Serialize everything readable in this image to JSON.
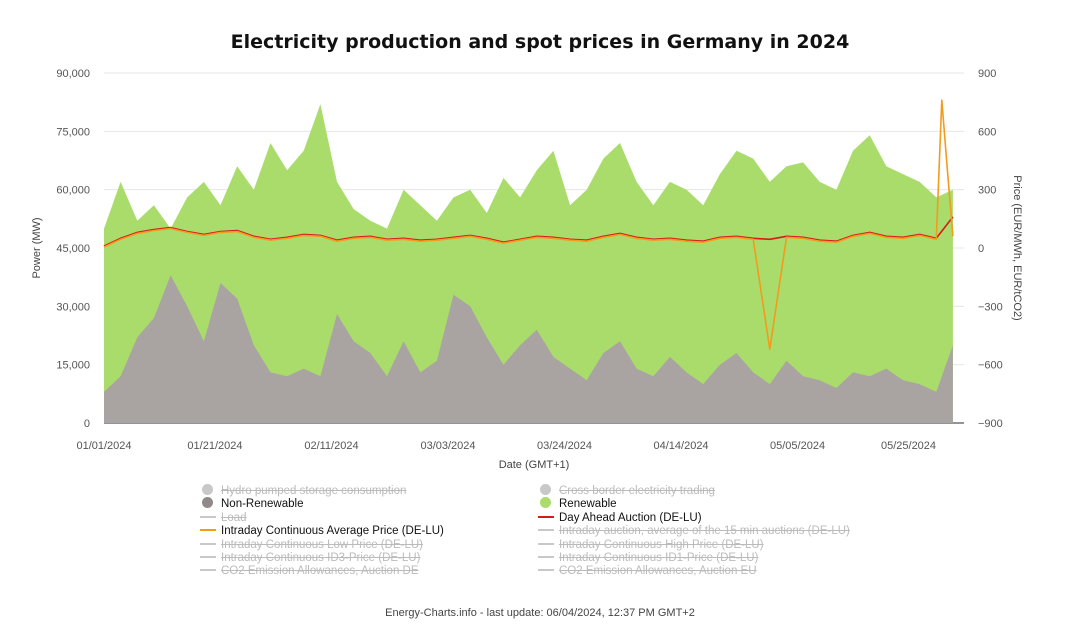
{
  "chart_data": {
    "type": "area",
    "title": "Electricity production and spot prices in Germany in 2024",
    "xlabel": "Date (GMT+1)",
    "ylabel": "Power (MW)",
    "y2label": "Price (EUR/MWh, EUR/tCO2)",
    "x_tick_labels": [
      "01/01/2024",
      "01/21/2024",
      "02/11/2024",
      "03/03/2024",
      "03/24/2024",
      "04/14/2024",
      "05/05/2024",
      "05/25/2024"
    ],
    "x_tick_days": [
      0,
      20,
      41,
      62,
      83,
      104,
      125,
      145
    ],
    "xlim_days": [
      0,
      155
    ],
    "ylim": [
      0,
      90000
    ],
    "y_ticks": [
      0,
      15000,
      30000,
      45000,
      60000,
      75000,
      90000
    ],
    "y_tick_labels": [
      "0",
      "15,000",
      "30,000",
      "45,000",
      "60,000",
      "75,000",
      "90,000"
    ],
    "y2lim": [
      -900,
      900
    ],
    "y2_ticks": [
      -900,
      -600,
      -300,
      0,
      300,
      600,
      900
    ],
    "y2_tick_labels": [
      "−900",
      "−600",
      "−300",
      "0",
      "300",
      "600",
      "900"
    ],
    "grid": true,
    "legend_position": "bottom",
    "series": [
      {
        "name": "Hydro pumped storage consumption",
        "kind": "area",
        "color": "#c8c8c8",
        "visible": false
      },
      {
        "name": "Cross border electricity trading",
        "kind": "area",
        "color": "#c8c8c8",
        "visible": false
      },
      {
        "name": "Non-Renewable",
        "kind": "area",
        "color": "#a9a4a2",
        "visible": true,
        "x_days": [
          0,
          3,
          6,
          9,
          12,
          15,
          18,
          21,
          24,
          27,
          30,
          33,
          36,
          39,
          42,
          45,
          48,
          51,
          54,
          57,
          60,
          63,
          66,
          69,
          72,
          75,
          78,
          81,
          84,
          87,
          90,
          93,
          96,
          99,
          102,
          105,
          108,
          111,
          114,
          117,
          120,
          123,
          126,
          129,
          132,
          135,
          138,
          141,
          144,
          147,
          150,
          153
        ],
        "values": [
          8000,
          12000,
          22000,
          27000,
          38000,
          30000,
          21000,
          36000,
          32000,
          20000,
          13000,
          12000,
          14000,
          12000,
          28000,
          21000,
          18000,
          12000,
          21000,
          13000,
          16000,
          33000,
          30000,
          22000,
          15000,
          20000,
          24000,
          17000,
          14000,
          11000,
          18000,
          21000,
          14000,
          12000,
          17000,
          13000,
          10000,
          15000,
          18000,
          13000,
          10000,
          16000,
          12000,
          11000,
          9000,
          13000,
          12000,
          14000,
          11000,
          10000,
          8000,
          20000
        ]
      },
      {
        "name": "Renewable",
        "kind": "area",
        "color": "#a9dc6b",
        "visible": true,
        "x_days": [
          0,
          3,
          6,
          9,
          12,
          15,
          18,
          21,
          24,
          27,
          30,
          33,
          36,
          39,
          42,
          45,
          48,
          51,
          54,
          57,
          60,
          63,
          66,
          69,
          72,
          75,
          78,
          81,
          84,
          87,
          90,
          93,
          96,
          99,
          102,
          105,
          108,
          111,
          114,
          117,
          120,
          123,
          126,
          129,
          132,
          135,
          138,
          141,
          144,
          147,
          150,
          153
        ],
        "values": [
          50000,
          62000,
          52000,
          56000,
          50000,
          58000,
          62000,
          56000,
          66000,
          60000,
          72000,
          65000,
          70000,
          82000,
          62000,
          55000,
          52000,
          50000,
          60000,
          56000,
          52000,
          58000,
          60000,
          54000,
          63000,
          58000,
          65000,
          70000,
          56000,
          60000,
          68000,
          72000,
          62000,
          56000,
          62000,
          60000,
          56000,
          64000,
          70000,
          68000,
          62000,
          66000,
          67000,
          62000,
          60000,
          70000,
          74000,
          66000,
          64000,
          62000,
          58000,
          60000
        ]
      },
      {
        "name": "Load",
        "kind": "line",
        "color": "#c8c8c8",
        "visible": false
      },
      {
        "name": "Day Ahead Auction (DE-LU)",
        "kind": "line",
        "axis": "price",
        "color": "#d7191c",
        "visible": true,
        "x_days": [
          0,
          3,
          6,
          9,
          12,
          15,
          18,
          21,
          24,
          27,
          30,
          33,
          36,
          39,
          42,
          45,
          48,
          51,
          54,
          57,
          60,
          63,
          66,
          69,
          72,
          75,
          78,
          81,
          84,
          87,
          90,
          93,
          96,
          99,
          102,
          105,
          108,
          111,
          114,
          117,
          120,
          123,
          126,
          129,
          132,
          135,
          138,
          141,
          144,
          147,
          150,
          153
        ],
        "values": [
          10,
          50,
          80,
          95,
          105,
          85,
          70,
          85,
          90,
          60,
          45,
          55,
          70,
          65,
          40,
          55,
          60,
          45,
          50,
          40,
          45,
          55,
          65,
          50,
          30,
          45,
          60,
          55,
          45,
          40,
          60,
          75,
          55,
          45,
          50,
          40,
          35,
          55,
          60,
          50,
          45,
          60,
          55,
          40,
          35,
          65,
          80,
          60,
          55,
          70,
          50,
          160
        ]
      },
      {
        "name": "Intraday Continuous Average Price (DE-LU)",
        "kind": "line",
        "axis": "price",
        "color": "#f39b1c",
        "visible": true,
        "x_days": [
          0,
          3,
          6,
          9,
          12,
          15,
          18,
          21,
          24,
          27,
          30,
          33,
          36,
          39,
          42,
          45,
          48,
          51,
          54,
          57,
          60,
          63,
          66,
          69,
          72,
          75,
          78,
          81,
          84,
          87,
          90,
          93,
          96,
          99,
          102,
          105,
          108,
          111,
          114,
          117,
          120,
          123,
          126,
          129,
          132,
          135,
          138,
          141,
          144,
          147,
          150,
          151,
          152,
          153
        ],
        "values": [
          5,
          45,
          75,
          90,
          100,
          80,
          65,
          80,
          85,
          55,
          40,
          50,
          65,
          60,
          35,
          50,
          55,
          40,
          45,
          35,
          40,
          50,
          60,
          45,
          25,
          40,
          55,
          50,
          40,
          35,
          55,
          70,
          50,
          40,
          45,
          35,
          30,
          50,
          55,
          45,
          -520,
          55,
          50,
          35,
          30,
          60,
          75,
          55,
          50,
          65,
          45,
          760,
          400,
          60
        ]
      },
      {
        "name": "Intraday auction, average of the 15 min auctions (DE-LU)",
        "kind": "line",
        "color": "#c8c8c8",
        "visible": false
      },
      {
        "name": "Intraday Continuous Low Price (DE-LU)",
        "kind": "line",
        "color": "#c8c8c8",
        "visible": false
      },
      {
        "name": "Intraday Continuous High Price (DE-LU)",
        "kind": "line",
        "color": "#c8c8c8",
        "visible": false
      },
      {
        "name": "Intraday Continuous ID3-Price (DE-LU)",
        "kind": "line",
        "color": "#c8c8c8",
        "visible": false
      },
      {
        "name": "Intraday Continuous ID1-Price (DE-LU)",
        "kind": "line",
        "color": "#c8c8c8",
        "visible": false
      },
      {
        "name": "CO2 Emission Allowances, Auction DE",
        "kind": "line",
        "color": "#c8c8c8",
        "visible": false
      },
      {
        "name": "CO2 Emission Allowances, Auction EU",
        "kind": "line",
        "color": "#c8c8c8",
        "visible": false
      }
    ]
  },
  "legend": [
    {
      "label": "Hydro pumped storage consumption",
      "marker": "dot",
      "color": "#c8c8c8",
      "visible": false
    },
    {
      "label": "Cross border electricity trading",
      "marker": "dot",
      "color": "#c8c8c8",
      "visible": false
    },
    {
      "label": "Non-Renewable",
      "marker": "dot",
      "color": "#8f8a88",
      "visible": true
    },
    {
      "label": "Renewable",
      "marker": "dot",
      "color": "#a9dc6b",
      "visible": true
    },
    {
      "label": "Load",
      "marker": "line",
      "color": "#c8c8c8",
      "visible": false
    },
    {
      "label": "Day Ahead Auction (DE-LU)",
      "marker": "line",
      "color": "#d7191c",
      "visible": true
    },
    {
      "label": "Intraday Continuous Average Price (DE-LU)",
      "marker": "line",
      "color": "#f39b1c",
      "visible": true
    },
    {
      "label": "Intraday auction, average of the 15 min auctions (DE-LU)",
      "marker": "line",
      "color": "#c8c8c8",
      "visible": false
    },
    {
      "label": "Intraday Continuous Low Price (DE-LU)",
      "marker": "line",
      "color": "#c8c8c8",
      "visible": false
    },
    {
      "label": "Intraday Continuous High Price (DE-LU)",
      "marker": "line",
      "color": "#c8c8c8",
      "visible": false
    },
    {
      "label": "Intraday Continuous ID3-Price (DE-LU)",
      "marker": "line",
      "color": "#c8c8c8",
      "visible": false
    },
    {
      "label": "Intraday Continuous ID1-Price (DE-LU)",
      "marker": "line",
      "color": "#c8c8c8",
      "visible": false
    },
    {
      "label": "CO2 Emission Allowances, Auction DE",
      "marker": "line",
      "color": "#c8c8c8",
      "visible": false
    },
    {
      "label": "CO2 Emission Allowances, Auction EU",
      "marker": "line",
      "color": "#c8c8c8",
      "visible": false
    }
  ],
  "footer": "Energy-Charts.info - last update: 06/04/2024, 12:37 PM GMT+2"
}
